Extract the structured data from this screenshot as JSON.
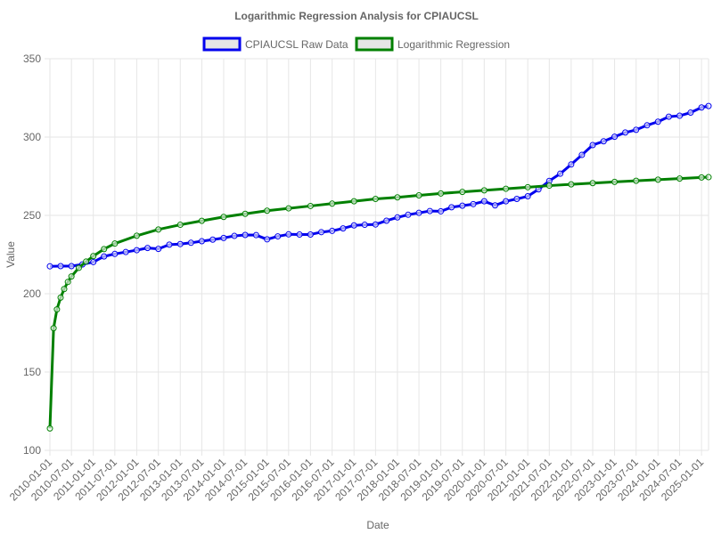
{
  "chart_data": {
    "type": "line",
    "title": "Logarithmic Regression Analysis for CPIAUCSL",
    "xlabel": "Date",
    "ylabel": "Value",
    "ylim": [
      100,
      350
    ],
    "yticks": [
      100,
      150,
      200,
      250,
      300,
      350
    ],
    "xlim": [
      "2010-01-01",
      "2025-03-01"
    ],
    "xticks": [
      "2010-01-01",
      "2010-07-01",
      "2011-01-01",
      "2011-07-01",
      "2012-01-01",
      "2012-07-01",
      "2013-01-01",
      "2013-07-01",
      "2014-01-01",
      "2014-07-01",
      "2015-01-01",
      "2015-07-01",
      "2016-01-01",
      "2016-07-01",
      "2017-01-01",
      "2017-07-01",
      "2018-01-01",
      "2018-07-01",
      "2019-01-01",
      "2019-07-01",
      "2020-01-01",
      "2020-07-01",
      "2021-01-01",
      "2021-07-01",
      "2022-01-01",
      "2022-07-01",
      "2023-01-01",
      "2023-07-01",
      "2024-01-01",
      "2024-07-01",
      "2025-01-01"
    ],
    "grid": true,
    "legend_position": "top",
    "series": [
      {
        "name": "CPIAUCSL Raw Data",
        "color": "#0000ee",
        "points": [
          [
            "2010-01-01",
            217.5
          ],
          [
            "2010-04-01",
            217.6
          ],
          [
            "2010-07-01",
            217.6
          ],
          [
            "2010-10-01",
            218.7
          ],
          [
            "2011-01-01",
            220.2
          ],
          [
            "2011-04-01",
            223.8
          ],
          [
            "2011-07-01",
            225.4
          ],
          [
            "2011-10-01",
            226.6
          ],
          [
            "2012-01-01",
            227.8
          ],
          [
            "2012-04-01",
            229.2
          ],
          [
            "2012-07-01",
            228.6
          ],
          [
            "2012-10-01",
            231.3
          ],
          [
            "2013-01-01",
            231.7
          ],
          [
            "2013-04-01",
            232.5
          ],
          [
            "2013-07-01",
            233.5
          ],
          [
            "2013-10-01",
            234.5
          ],
          [
            "2014-01-01",
            235.6
          ],
          [
            "2014-04-01",
            236.9
          ],
          [
            "2014-07-01",
            237.5
          ],
          [
            "2014-10-01",
            237.4
          ],
          [
            "2015-01-01",
            234.7
          ],
          [
            "2015-04-01",
            236.6
          ],
          [
            "2015-07-01",
            237.9
          ],
          [
            "2015-10-01",
            237.8
          ],
          [
            "2016-01-01",
            237.8
          ],
          [
            "2016-04-01",
            239.3
          ],
          [
            "2016-07-01",
            240.1
          ],
          [
            "2016-10-01",
            241.7
          ],
          [
            "2017-01-01",
            243.6
          ],
          [
            "2017-04-01",
            244.0
          ],
          [
            "2017-07-01",
            244.2
          ],
          [
            "2017-10-01",
            246.6
          ],
          [
            "2018-01-01",
            248.7
          ],
          [
            "2018-04-01",
            250.4
          ],
          [
            "2018-07-01",
            251.6
          ],
          [
            "2018-10-01",
            252.8
          ],
          [
            "2019-01-01",
            252.6
          ],
          [
            "2019-04-01",
            255.2
          ],
          [
            "2019-07-01",
            256.2
          ],
          [
            "2019-10-01",
            257.2
          ],
          [
            "2020-01-01",
            259.0
          ],
          [
            "2020-04-01",
            256.4
          ],
          [
            "2020-07-01",
            259.0
          ],
          [
            "2020-10-01",
            260.5
          ],
          [
            "2021-01-01",
            262.2
          ],
          [
            "2021-04-01",
            266.6
          ],
          [
            "2021-07-01",
            272.0
          ],
          [
            "2021-10-01",
            276.6
          ],
          [
            "2022-01-01",
            282.5
          ],
          [
            "2022-04-01",
            288.6
          ],
          [
            "2022-07-01",
            294.9
          ],
          [
            "2022-10-01",
            297.3
          ],
          [
            "2023-01-01",
            300.2
          ],
          [
            "2023-04-01",
            302.9
          ],
          [
            "2023-07-01",
            304.6
          ],
          [
            "2023-10-01",
            307.5
          ],
          [
            "2024-01-01",
            309.8
          ],
          [
            "2024-04-01",
            313.0
          ],
          [
            "2024-07-01",
            313.6
          ],
          [
            "2024-10-01",
            315.6
          ],
          [
            "2025-01-01",
            318.9
          ],
          [
            "2025-03-01",
            319.8
          ]
        ]
      },
      {
        "name": "Logarithmic Regression",
        "color": "#008000",
        "points": [
          [
            "2010-01-01",
            114
          ],
          [
            "2010-02-01",
            178
          ],
          [
            "2010-03-01",
            190
          ],
          [
            "2010-04-01",
            197.5
          ],
          [
            "2010-05-01",
            203
          ],
          [
            "2010-06-01",
            207.5
          ],
          [
            "2010-07-01",
            211
          ],
          [
            "2010-09-01",
            216.5
          ],
          [
            "2010-11-01",
            220.5
          ],
          [
            "2011-01-01",
            224
          ],
          [
            "2011-04-01",
            228.5
          ],
          [
            "2011-07-01",
            232
          ],
          [
            "2012-01-01",
            237
          ],
          [
            "2012-07-01",
            241
          ],
          [
            "2013-01-01",
            244
          ],
          [
            "2013-07-01",
            246.5
          ],
          [
            "2014-01-01",
            249
          ],
          [
            "2014-07-01",
            251
          ],
          [
            "2015-01-01",
            253
          ],
          [
            "2015-07-01",
            254.5
          ],
          [
            "2016-01-01",
            256
          ],
          [
            "2016-07-01",
            257.5
          ],
          [
            "2017-01-01",
            259
          ],
          [
            "2017-07-01",
            260.5
          ],
          [
            "2018-01-01",
            261.5
          ],
          [
            "2018-07-01",
            262.8
          ],
          [
            "2019-01-01",
            264
          ],
          [
            "2019-07-01",
            265
          ],
          [
            "2020-01-01",
            266
          ],
          [
            "2020-07-01",
            267
          ],
          [
            "2021-01-01",
            268
          ],
          [
            "2021-07-01",
            269
          ],
          [
            "2022-01-01",
            269.8
          ],
          [
            "2022-07-01",
            270.6
          ],
          [
            "2023-01-01",
            271.4
          ],
          [
            "2023-07-01",
            272.1
          ],
          [
            "2024-01-01",
            272.8
          ],
          [
            "2024-07-01",
            273.5
          ],
          [
            "2025-01-01",
            274.2
          ],
          [
            "2025-03-01",
            274.4
          ]
        ]
      }
    ]
  }
}
